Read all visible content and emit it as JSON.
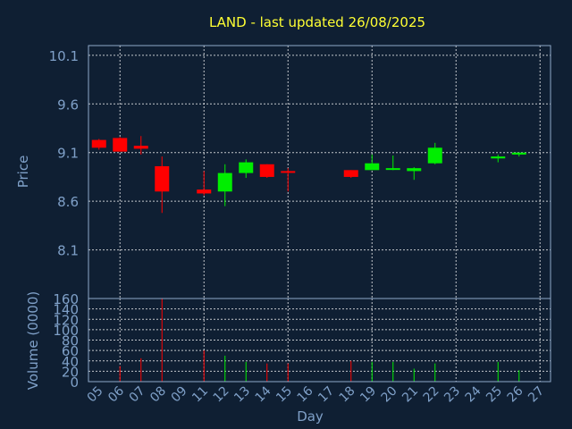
{
  "colors": {
    "background": "#0f1f33",
    "plot_background": "#0f1f33",
    "grid": "#ffffff",
    "frame": "#8fa8c8",
    "text": "#7fa0c8",
    "title": "#ffff33",
    "up": "#00ee00",
    "down": "#ff0000"
  },
  "chart_data": {
    "type": "candlestick",
    "title": "LAND - last updated 26/08/2025",
    "xlabel": "Day",
    "ylabel": "Price",
    "volume_ylabel": "Volume (0000)",
    "x_ticks": [
      "05",
      "06",
      "07",
      "08",
      "09",
      "11",
      "12",
      "13",
      "14",
      "15",
      "16",
      "17",
      "18",
      "19",
      "20",
      "21",
      "22",
      "23",
      "24",
      "25",
      "26",
      "27"
    ],
    "price_ticks": [
      8.1,
      8.6,
      9.1,
      9.6,
      10.1
    ],
    "price_ylim": [
      7.6,
      10.2
    ],
    "volume_ticks": [
      0,
      20,
      40,
      60,
      80,
      100,
      120,
      140,
      160
    ],
    "volume_ylim": [
      0,
      160
    ],
    "grid": true,
    "candles": [
      {
        "day": "05",
        "open": 9.23,
        "high": 9.24,
        "low": 9.13,
        "close": 9.15,
        "volume": 0
      },
      {
        "day": "06",
        "open": 9.25,
        "high": 9.26,
        "low": 9.11,
        "close": 9.11,
        "volume": 30
      },
      {
        "day": "07",
        "open": 9.17,
        "high": 9.27,
        "low": 9.08,
        "close": 9.14,
        "volume": 45
      },
      {
        "day": "08",
        "open": 8.96,
        "high": 9.06,
        "low": 8.48,
        "close": 8.7,
        "volume": 160
      },
      {
        "day": "11",
        "open": 8.72,
        "high": 8.91,
        "low": 8.66,
        "close": 8.68,
        "volume": 60
      },
      {
        "day": "12",
        "open": 8.7,
        "high": 8.98,
        "low": 8.55,
        "close": 8.89,
        "volume": 50
      },
      {
        "day": "13",
        "open": 8.89,
        "high": 9.03,
        "low": 8.84,
        "close": 9.0,
        "volume": 38
      },
      {
        "day": "14",
        "open": 8.98,
        "high": 8.98,
        "low": 8.84,
        "close": 8.85,
        "volume": 35
      },
      {
        "day": "15",
        "open": 8.91,
        "high": 8.94,
        "low": 8.7,
        "close": 8.9,
        "volume": 35
      },
      {
        "day": "18",
        "open": 8.92,
        "high": 8.92,
        "low": 8.84,
        "close": 8.85,
        "volume": 40
      },
      {
        "day": "19",
        "open": 8.92,
        "high": 9.08,
        "low": 8.92,
        "close": 8.99,
        "volume": 38
      },
      {
        "day": "20",
        "open": 8.93,
        "high": 9.07,
        "low": 8.92,
        "close": 8.94,
        "volume": 38
      },
      {
        "day": "21",
        "open": 8.91,
        "high": 8.95,
        "low": 8.82,
        "close": 8.94,
        "volume": 25
      },
      {
        "day": "22",
        "open": 8.99,
        "high": 9.2,
        "low": 8.98,
        "close": 9.15,
        "volume": 35
      },
      {
        "day": "25",
        "open": 9.04,
        "high": 9.08,
        "low": 9.0,
        "close": 9.06,
        "volume": 38
      },
      {
        "day": "26",
        "open": 9.08,
        "high": 9.1,
        "low": 9.06,
        "close": 9.1,
        "volume": 22
      }
    ]
  }
}
